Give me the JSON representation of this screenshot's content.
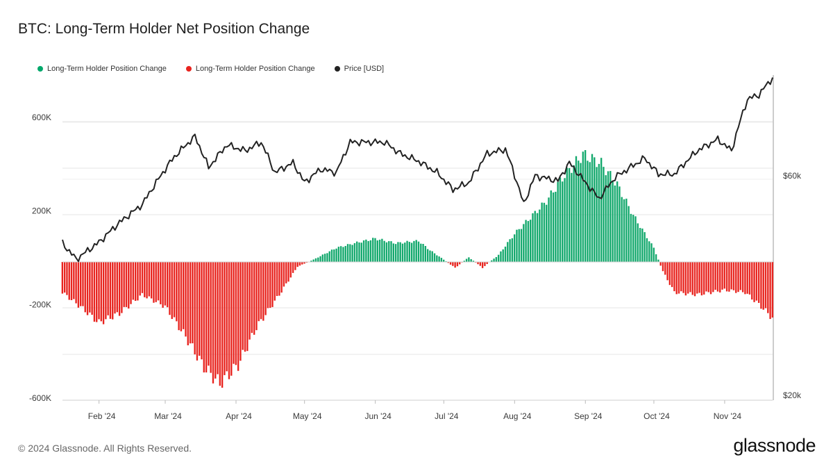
{
  "title": "BTC: Long-Term Holder Net Position Change",
  "legend": [
    {
      "label": "Long-Term Holder Position Change",
      "color": "#00a86b"
    },
    {
      "label": "Long-Term Holder Position Change",
      "color": "#e8231e"
    },
    {
      "label": "Price [USD]",
      "color": "#222222"
    }
  ],
  "footer": {
    "copyright": "© 2024 Glassnode. All Rights Reserved.",
    "brand": "glassnode"
  },
  "chart_data": {
    "type": "bar",
    "colors": {
      "positive": "#12a86c",
      "negative": "#e8231e",
      "price": "#222222",
      "grid": "#e4e4e4"
    },
    "grid": true,
    "legend_position": "top-left",
    "x_range": [
      "2024-01-16",
      "2024-11-22"
    ],
    "x_ticks": [
      {
        "label": "Feb '24",
        "date": "2024-02-01"
      },
      {
        "label": "Mar '24",
        "date": "2024-03-01"
      },
      {
        "label": "Apr '24",
        "date": "2024-04-01"
      },
      {
        "label": "May '24",
        "date": "2024-05-01"
      },
      {
        "label": "Jun '24",
        "date": "2024-06-01"
      },
      {
        "label": "Jul '24",
        "date": "2024-07-01"
      },
      {
        "label": "Aug '24",
        "date": "2024-08-01"
      },
      {
        "label": "Sep '24",
        "date": "2024-09-01"
      },
      {
        "label": "Oct '24",
        "date": "2024-10-01"
      },
      {
        "label": "Nov '24",
        "date": "2024-11-01"
      }
    ],
    "y_left": {
      "ticks": [
        "600K",
        "200K",
        "-200K",
        "-600K"
      ],
      "tick_values": [
        600000,
        200000,
        -200000,
        -600000
      ],
      "range": [
        -600000,
        600000
      ]
    },
    "y_right": {
      "ticks": [
        "$60k",
        "$20k"
      ],
      "tick_values": [
        60000,
        20000
      ],
      "scale": "log"
    },
    "series": [
      {
        "name": "Long-Term Holder Position Change",
        "type": "bar",
        "anchors": [
          [
            "2024-01-16",
            -130000
          ],
          [
            "2024-01-25",
            -200000
          ],
          [
            "2024-02-01",
            -260000
          ],
          [
            "2024-02-10",
            -220000
          ],
          [
            "2024-02-20",
            -140000
          ],
          [
            "2024-03-01",
            -190000
          ],
          [
            "2024-03-10",
            -320000
          ],
          [
            "2024-03-18",
            -450000
          ],
          [
            "2024-03-25",
            -520000
          ],
          [
            "2024-04-02",
            -440000
          ],
          [
            "2024-04-10",
            -280000
          ],
          [
            "2024-04-20",
            -140000
          ],
          [
            "2024-04-28",
            -20000
          ],
          [
            "2024-05-05",
            10000
          ],
          [
            "2024-05-15",
            60000
          ],
          [
            "2024-05-25",
            85000
          ],
          [
            "2024-06-01",
            100000
          ],
          [
            "2024-06-10",
            80000
          ],
          [
            "2024-06-20",
            90000
          ],
          [
            "2024-06-25",
            50000
          ],
          [
            "2024-07-01",
            10000
          ],
          [
            "2024-07-06",
            -25000
          ],
          [
            "2024-07-12",
            20000
          ],
          [
            "2024-07-18",
            -25000
          ],
          [
            "2024-07-25",
            30000
          ],
          [
            "2024-08-01",
            120000
          ],
          [
            "2024-08-08",
            190000
          ],
          [
            "2024-08-15",
            260000
          ],
          [
            "2024-08-22",
            360000
          ],
          [
            "2024-08-31",
            460000
          ],
          [
            "2024-09-08",
            420000
          ],
          [
            "2024-09-15",
            330000
          ],
          [
            "2024-09-22",
            200000
          ],
          [
            "2024-10-01",
            60000
          ],
          [
            "2024-10-05",
            -40000
          ],
          [
            "2024-10-10",
            -130000
          ],
          [
            "2024-10-20",
            -140000
          ],
          [
            "2024-11-01",
            -120000
          ],
          [
            "2024-11-10",
            -130000
          ],
          [
            "2024-11-17",
            -190000
          ],
          [
            "2024-11-22",
            -240000
          ]
        ]
      },
      {
        "name": "Price [USD]",
        "type": "line",
        "anchors": [
          [
            "2024-01-16",
            42800
          ],
          [
            "2024-01-22",
            39500
          ],
          [
            "2024-02-01",
            43000
          ],
          [
            "2024-02-09",
            47000
          ],
          [
            "2024-02-20",
            52000
          ],
          [
            "2024-03-01",
            62000
          ],
          [
            "2024-03-05",
            66000
          ],
          [
            "2024-03-14",
            73000
          ],
          [
            "2024-03-20",
            62500
          ],
          [
            "2024-03-28",
            70000
          ],
          [
            "2024-04-05",
            68000
          ],
          [
            "2024-04-12",
            71000
          ],
          [
            "2024-04-18",
            61000
          ],
          [
            "2024-04-26",
            64000
          ],
          [
            "2024-05-01",
            58000
          ],
          [
            "2024-05-08",
            62000
          ],
          [
            "2024-05-15",
            61000
          ],
          [
            "2024-05-21",
            71000
          ],
          [
            "2024-06-05",
            71000
          ],
          [
            "2024-06-12",
            67000
          ],
          [
            "2024-06-20",
            64500
          ],
          [
            "2024-06-28",
            61000
          ],
          [
            "2024-07-05",
            56000
          ],
          [
            "2024-07-12",
            58000
          ],
          [
            "2024-07-20",
            67000
          ],
          [
            "2024-07-28",
            68500
          ],
          [
            "2024-08-05",
            52000
          ],
          [
            "2024-08-10",
            60000
          ],
          [
            "2024-08-20",
            58500
          ],
          [
            "2024-08-25",
            64000
          ],
          [
            "2024-09-01",
            58000
          ],
          [
            "2024-09-07",
            53500
          ],
          [
            "2024-09-14",
            59500
          ],
          [
            "2024-09-27",
            65500
          ],
          [
            "2024-10-03",
            60500
          ],
          [
            "2024-10-10",
            60500
          ],
          [
            "2024-10-20",
            68000
          ],
          [
            "2024-10-29",
            72000
          ],
          [
            "2024-11-04",
            68000
          ],
          [
            "2024-11-11",
            88000
          ],
          [
            "2024-11-16",
            90000
          ],
          [
            "2024-11-22",
            98000
          ]
        ]
      }
    ]
  }
}
